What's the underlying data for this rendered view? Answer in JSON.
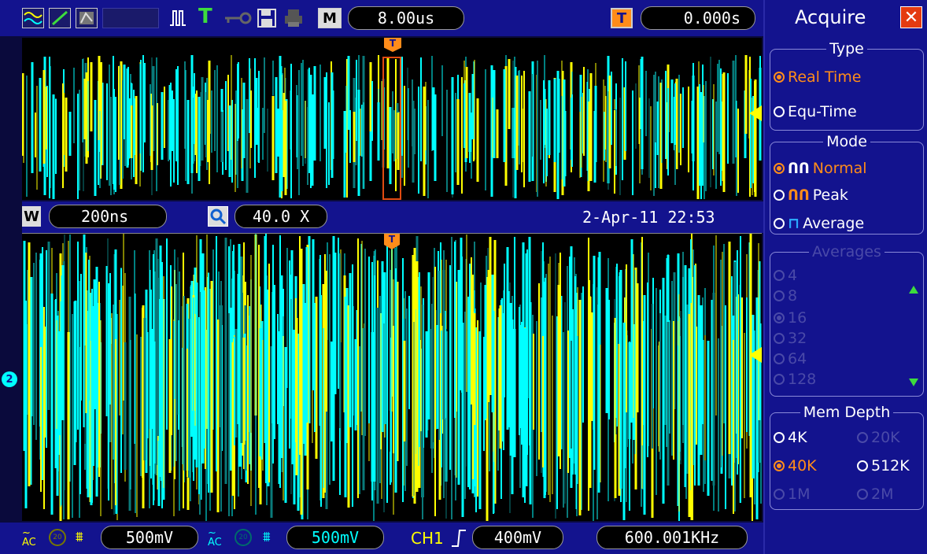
{
  "top": {
    "timebase": "8.00us",
    "trigger_position": "0.000s",
    "m_label": "M"
  },
  "middle": {
    "w_label": "W",
    "window_timebase": "200ns",
    "zoom": "40.0 X",
    "datetime": "2-Apr-11 22:53"
  },
  "bottom": {
    "ch1_scale": "500mV",
    "ch2_scale": "500mV",
    "trigger_source": "CH1",
    "trigger_level": "400mV",
    "frequency": "600.001KHz"
  },
  "panel": {
    "title": "Acquire",
    "type": {
      "title": "Type",
      "options": [
        "Real Time",
        "Equ-Time"
      ],
      "selected": "Real Time"
    },
    "mode": {
      "title": "Mode",
      "options": [
        "Normal",
        "Peak",
        "Average"
      ],
      "selected": "Normal"
    },
    "averages": {
      "title": "Averages",
      "options": [
        "4",
        "8",
        "16",
        "32",
        "64",
        "128"
      ],
      "selected": "16"
    },
    "mem_depth": {
      "title": "Mem Depth",
      "options": [
        "4K",
        "20K",
        "40K",
        "512K",
        "1M",
        "2M"
      ],
      "selected": "40K"
    }
  },
  "colors": {
    "ch1": "#ffff00",
    "ch2": "#00ffff",
    "accent": "#ff8c1a",
    "bar": "#13138e"
  },
  "icons": [
    "wave-icon",
    "line-icon",
    "fill-icon",
    "normal-mode-icon",
    "trigger-t-icon",
    "key-icon",
    "save-icon",
    "print-icon",
    "trigger-pos-icon",
    "zoom-icon",
    "ac-coupling-icon",
    "bw-limit-icon",
    "close-icon"
  ]
}
